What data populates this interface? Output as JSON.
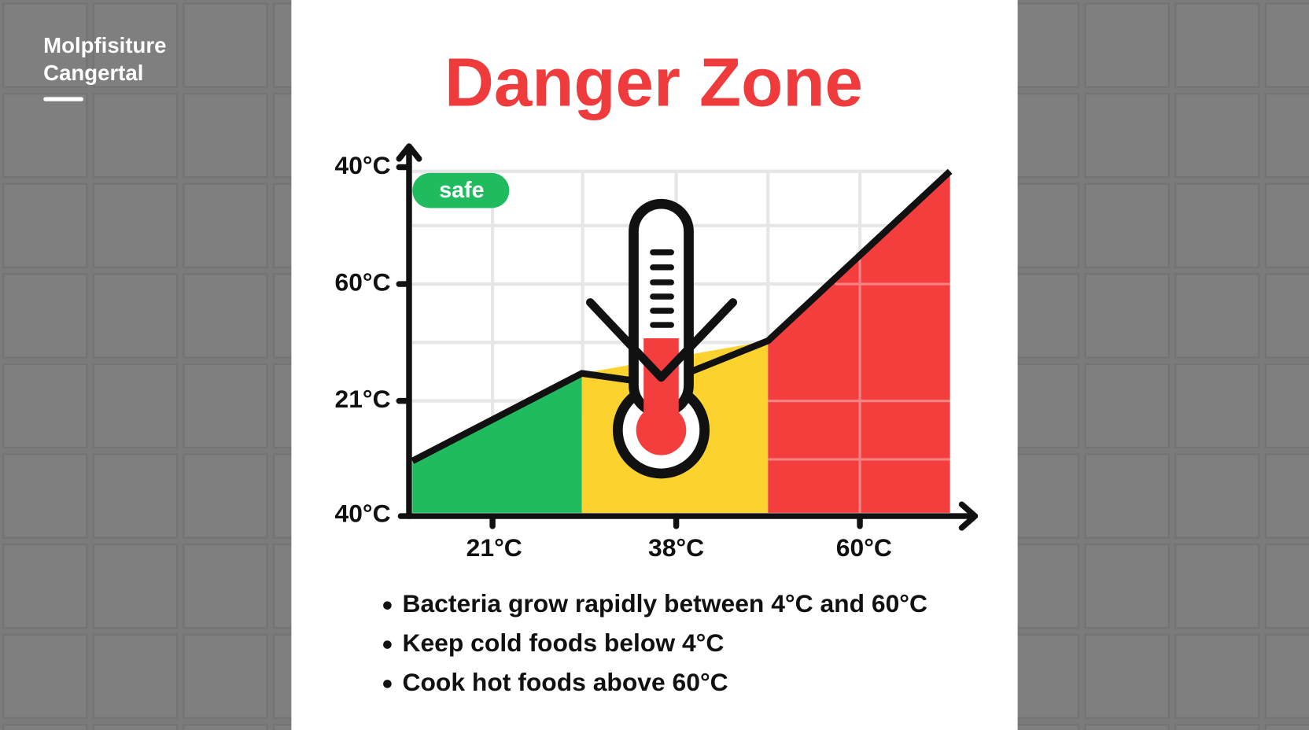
{
  "brand": {
    "line1": "Molpfisiture",
    "line2": "Cangertal"
  },
  "title": "Danger Zone",
  "badge": "safe",
  "y_labels": [
    "40°C",
    "60°C",
    "21°C",
    "40°C"
  ],
  "x_labels": [
    "21°C",
    "38°C",
    "60°C"
  ],
  "bullets": [
    "Bacteria grow rapidly between 4°C and 60°C",
    "Keep cold foods below 4°C",
    "Cook hot foods above 60°C"
  ]
}
